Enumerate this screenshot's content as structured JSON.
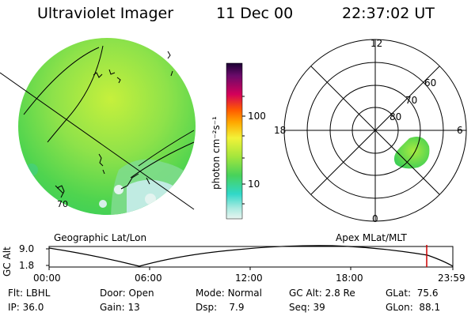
{
  "header": {
    "instrument": "Ultraviolet Imager",
    "date": "11 Dec 00",
    "time": "22:37:02 UT"
  },
  "colorbar": {
    "unit_label": "photon cm⁻²s⁻¹",
    "ticks": [
      "100",
      "10"
    ]
  },
  "polar_plot": {
    "clock_labels": [
      "12",
      "18",
      "6",
      "0"
    ],
    "lat_labels": [
      "60",
      "70",
      "80"
    ]
  },
  "geo_map": {
    "corner_label": "70"
  },
  "panel_labels": {
    "left": "Geographic Lat/Lon",
    "right": "Apex MLat/MLT"
  },
  "altitude_strip": {
    "ylabel": "GC Alt",
    "y_ticks": [
      "9.0",
      "1.8"
    ],
    "time_ticks": [
      "00:00",
      "06:00",
      "12:00",
      "18:00",
      "23:59"
    ],
    "current_marker_time": "22:37"
  },
  "info": {
    "filter_label": "Flt:",
    "filter_value": "LBHL",
    "ip_label": "IP:",
    "ip_value": "36.0",
    "door_label": "Door:",
    "door_value": "Open",
    "gain_label": "Gain:",
    "gain_value": "13",
    "mode_label": "Mode:",
    "mode_value": "Normal",
    "dsp_label": "Dsp:",
    "dsp_value": "7.9",
    "gcalt_label": "GC Alt:",
    "gcalt_value": "2.8 Re",
    "seq_label": "Seq:",
    "seq_value": "39",
    "glat_label": "GLat:",
    "glat_value": "75.6",
    "glon_label": "GLon:",
    "glon_value": "88.1"
  },
  "colors": {
    "aurora_green": "#4fd44f",
    "aurora_yellow": "#b8ee3c",
    "marker_red": "#cc0000"
  }
}
